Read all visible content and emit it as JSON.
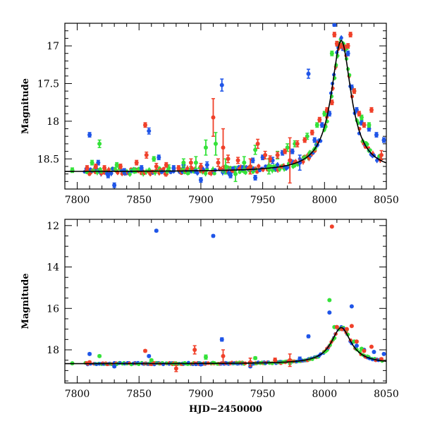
{
  "chart_data": [
    {
      "type": "scatter",
      "panel": "top",
      "ylabel": "Magnitude",
      "xlabel": "",
      "xlim": [
        7790,
        8050
      ],
      "ylim": [
        18.9,
        16.7
      ],
      "y_inverted": true,
      "xticks": [
        "7800",
        "7850",
        "7900",
        "7950",
        "8000",
        "8050"
      ],
      "yticks": [
        "17",
        "17.5",
        "18",
        "18.5"
      ],
      "colors": {
        "blue": "#1f55e8",
        "green": "#35e23a",
        "red": "#f0412a",
        "model": "#000000"
      },
      "model_curve": {
        "peak_x": 8013.5,
        "peak_y": 16.93,
        "baseline": 18.67,
        "amplitude": 1.74,
        "timescale": 24.0
      },
      "series": [
        {
          "color": "blue",
          "points": [
            [
              7810,
              18.18,
              0.03
            ],
            [
              7817,
              18.55,
              0.03
            ],
            [
              7825,
              18.72,
              0.03
            ],
            [
              7838,
              18.66,
              0.03
            ],
            [
              7852,
              18.62,
              0.03
            ],
            [
              7858,
              18.13,
              0.04
            ],
            [
              7866,
              18.48,
              0.03
            ],
            [
              7878,
              18.62,
              0.03
            ],
            [
              7886,
              18.58,
              0.03
            ],
            [
              7896,
              18.66,
              0.03
            ],
            [
              7905,
              18.58,
              0.04
            ],
            [
              7917,
              17.52,
              0.08
            ],
            [
              7924,
              18.72,
              0.03
            ],
            [
              7934,
              18.62,
              0.03
            ],
            [
              7942,
              18.52,
              0.03
            ],
            [
              7950,
              18.48,
              0.03
            ],
            [
              7958,
              18.52,
              0.04
            ],
            [
              7966,
              18.42,
              0.03
            ],
            [
              7974,
              18.4,
              0.03
            ],
            [
              7980,
              18.55,
              0.1
            ],
            [
              7987,
              17.37,
              0.06
            ],
            [
              7992,
              18.25,
              0.03
            ],
            [
              7998,
              18.05,
              0.03
            ],
            [
              8004,
              17.9,
              0.03
            ],
            [
              8008,
              16.72,
              0.02
            ],
            [
              8011,
              17.0,
              0.03
            ],
            [
              8015,
              17.03,
              0.03
            ],
            [
              8019,
              17.1,
              0.03
            ],
            [
              8022,
              17.55,
              0.03
            ],
            [
              8026,
              17.85,
              0.03
            ],
            [
              8030,
              18.02,
              0.03
            ],
            [
              8036,
              18.1,
              0.03
            ],
            [
              8042,
              18.18,
              0.03
            ],
            [
              8048,
              18.25,
              0.03
            ],
            [
              7830,
              18.85,
              0.03
            ],
            [
              7900,
              18.78,
              0.03
            ],
            [
              7944,
              18.75,
              0.03
            ]
          ]
        },
        {
          "color": "green",
          "points": [
            [
              7796,
              18.65,
              0.03
            ],
            [
              7812,
              18.55,
              0.03
            ],
            [
              7818,
              18.3,
              0.05
            ],
            [
              7832,
              18.58,
              0.03
            ],
            [
              7846,
              18.65,
              0.03
            ],
            [
              7862,
              18.5,
              0.03
            ],
            [
              7874,
              18.62,
              0.04
            ],
            [
              7886,
              18.55,
              0.05
            ],
            [
              7896,
              18.55,
              0.08
            ],
            [
              7904,
              18.35,
              0.1
            ],
            [
              7912,
              18.3,
              0.15
            ],
            [
              7920,
              18.6,
              0.1
            ],
            [
              7928,
              18.7,
              0.1
            ],
            [
              7935,
              18.55,
              0.08
            ],
            [
              7944,
              18.38,
              0.06
            ],
            [
              7955,
              18.6,
              0.1
            ],
            [
              7962,
              18.45,
              0.05
            ],
            [
              7970,
              18.35,
              0.05
            ],
            [
              7976,
              18.3,
              0.04
            ],
            [
              7986,
              18.2,
              0.04
            ],
            [
              7994,
              18.05,
              0.03
            ],
            [
              8000,
              17.9,
              0.03
            ],
            [
              8006,
              17.1,
              0.03
            ],
            [
              8012,
              16.98,
              0.03
            ],
            [
              8018,
              17.02,
              0.03
            ],
            [
              8024,
              17.6,
              0.03
            ],
            [
              8030,
              17.95,
              0.03
            ],
            [
              8036,
              18.05,
              0.03
            ]
          ]
        },
        {
          "color": "red",
          "points": [
            [
              7808,
              18.62,
              0.03
            ],
            [
              7815,
              18.6,
              0.03
            ],
            [
              7822,
              18.62,
              0.03
            ],
            [
              7835,
              18.6,
              0.03
            ],
            [
              7848,
              18.55,
              0.03
            ],
            [
              7855,
              18.05,
              0.03
            ],
            [
              7856,
              18.45,
              0.04
            ],
            [
              7864,
              18.6,
              0.04
            ],
            [
              7872,
              18.58,
              0.03
            ],
            [
              7882,
              18.62,
              0.03
            ],
            [
              7892,
              18.55,
              0.05
            ],
            [
              7900,
              18.6,
              0.04
            ],
            [
              7910,
              17.95,
              0.25
            ],
            [
              7914,
              18.55,
              0.05
            ],
            [
              7918,
              18.35,
              0.25
            ],
            [
              7922,
              18.5,
              0.05
            ],
            [
              7930,
              18.52,
              0.04
            ],
            [
              7940,
              18.6,
              0.1
            ],
            [
              7946,
              18.3,
              0.06
            ],
            [
              7952,
              18.45,
              0.05
            ],
            [
              7956,
              18.5,
              0.04
            ],
            [
              7962,
              18.45,
              0.04
            ],
            [
              7968,
              18.4,
              0.03
            ],
            [
              7972,
              18.52,
              0.3
            ],
            [
              7978,
              18.3,
              0.04
            ],
            [
              7984,
              18.25,
              0.03
            ],
            [
              7990,
              18.15,
              0.03
            ],
            [
              7996,
              17.98,
              0.03
            ],
            [
              8002,
              17.85,
              0.03
            ],
            [
              8006,
              17.75,
              0.03
            ],
            [
              8008,
              16.85,
              0.03
            ],
            [
              8010,
              16.97,
              0.03
            ],
            [
              8013,
              17.0,
              0.03
            ],
            [
              8016,
              17.02,
              0.03
            ],
            [
              8019,
              17.0,
              0.03
            ],
            [
              8021,
              16.85,
              0.03
            ],
            [
              8024,
              17.6,
              0.03
            ],
            [
              8028,
              17.9,
              0.03
            ],
            [
              8032,
              18.05,
              0.03
            ],
            [
              8038,
              17.85,
              0.03
            ],
            [
              8046,
              18.45,
              0.06
            ]
          ]
        }
      ]
    },
    {
      "type": "scatter",
      "panel": "bottom",
      "ylabel": "Magnitude",
      "xlabel": "HJD−2450000",
      "xlim": [
        7790,
        8050
      ],
      "ylim": [
        19.6,
        11.7
      ],
      "y_inverted": true,
      "xticks": [
        "7800",
        "7850",
        "7900",
        "7950",
        "8000",
        "8050"
      ],
      "yticks": [
        "12",
        "14",
        "16",
        "18"
      ],
      "colors": {
        "blue": "#1f55e8",
        "green": "#35e23a",
        "red": "#f0412a",
        "model": "#000000"
      },
      "model_curve": {
        "peak_x": 8013.5,
        "peak_y": 16.93,
        "baseline": 18.67,
        "amplitude": 1.74,
        "timescale": 24.0
      },
      "series": [
        {
          "color": "blue",
          "points": [
            [
              7810,
              18.2,
              0.05
            ],
            [
              7864,
              12.25,
              0.05
            ],
            [
              7910,
              12.5,
              0.05
            ],
            [
              7917,
              17.5,
              0.08
            ],
            [
              7830,
              18.8,
              0.05
            ],
            [
              7858,
              18.3,
              0.05
            ],
            [
              7900,
              18.7,
              0.05
            ],
            [
              7940,
              18.8,
              0.05
            ],
            [
              7980,
              18.45,
              0.1
            ],
            [
              7987,
              17.35,
              0.06
            ],
            [
              8004,
              16.2,
              0.03
            ],
            [
              8010,
              16.9,
              0.03
            ],
            [
              8015,
              17.0,
              0.03
            ],
            [
              8022,
              15.9,
              0.03
            ],
            [
              8026,
              17.8,
              0.03
            ],
            [
              8032,
              18.0,
              0.03
            ],
            [
              8040,
              18.1,
              0.03
            ],
            [
              8048,
              18.2,
              0.03
            ]
          ]
        },
        {
          "color": "green",
          "points": [
            [
              7796,
              18.65,
              0.03
            ],
            [
              7818,
              18.3,
              0.05
            ],
            [
              7860,
              18.5,
              0.05
            ],
            [
              7904,
              18.35,
              0.1
            ],
            [
              7944,
              18.4,
              0.06
            ],
            [
              7972,
              18.6,
              0.1
            ],
            [
              8004,
              15.6,
              0.03
            ],
            [
              8008,
              16.9,
              0.03
            ],
            [
              8012,
              17.0,
              0.03
            ],
            [
              8018,
              17.02,
              0.03
            ],
            [
              8024,
              17.6,
              0.03
            ],
            [
              8030,
              17.95,
              0.03
            ]
          ]
        },
        {
          "color": "red",
          "points": [
            [
              7810,
              18.6,
              0.05
            ],
            [
              7855,
              18.05,
              0.05
            ],
            [
              7880,
              18.9,
              0.15
            ],
            [
              7895,
              18.0,
              0.2
            ],
            [
              7918,
              18.3,
              0.3
            ],
            [
              7940,
              18.6,
              0.2
            ],
            [
              7960,
              18.5,
              0.1
            ],
            [
              7972,
              18.5,
              0.3
            ],
            [
              8006,
              12.05,
              0.03
            ],
            [
              8010,
              16.9,
              0.03
            ],
            [
              8014,
              17.0,
              0.03
            ],
            [
              8018,
              17.0,
              0.03
            ],
            [
              8022,
              16.85,
              0.03
            ],
            [
              8026,
              17.6,
              0.03
            ],
            [
              8032,
              18.05,
              0.03
            ],
            [
              8038,
              17.85,
              0.03
            ],
            [
              8046,
              18.45,
              0.06
            ]
          ]
        }
      ]
    }
  ]
}
